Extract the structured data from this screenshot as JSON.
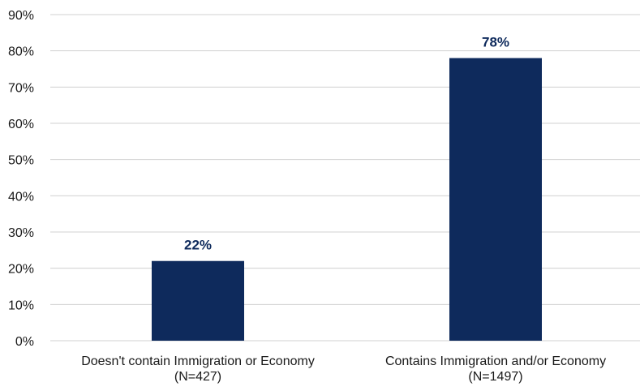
{
  "chart_data": {
    "type": "bar",
    "categories": [
      [
        "Doesn't contain Immigration or Economy",
        "(N=427)"
      ],
      [
        "Contains Immigration and/or Economy",
        "(N=1497)"
      ]
    ],
    "values": [
      22,
      78
    ],
    "data_labels": [
      "22%",
      "78%"
    ],
    "ylim": [
      0,
      90
    ],
    "yticks": [
      0,
      10,
      20,
      30,
      40,
      50,
      60,
      70,
      80,
      90
    ],
    "ytick_labels": [
      "0%",
      "10%",
      "20%",
      "30%",
      "40%",
      "50%",
      "60%",
      "70%",
      "80%",
      "90%"
    ],
    "grid": true,
    "legend": "none",
    "bar_color": "#0e2a5c"
  }
}
